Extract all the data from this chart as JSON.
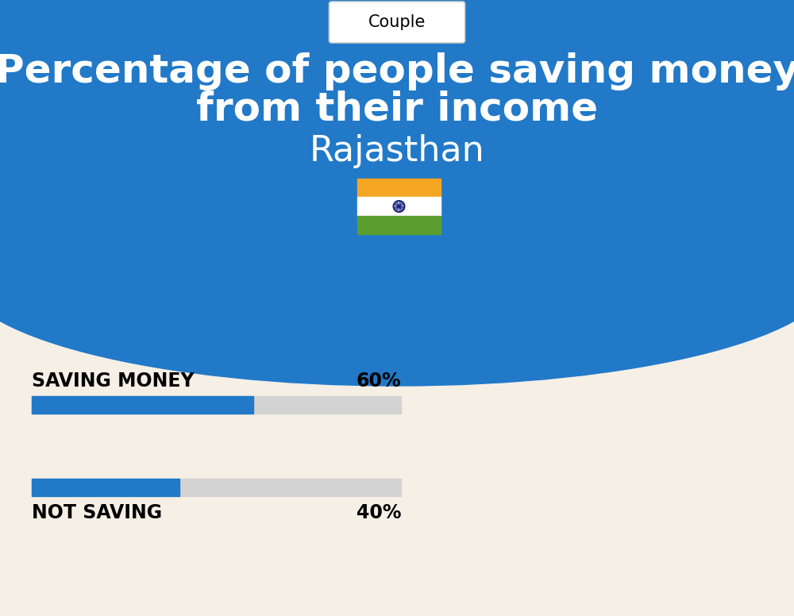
{
  "title_line1": "Percentage of people saving money",
  "title_line2": "from their income",
  "subtitle": "Rajasthan",
  "tab_label": "Couple",
  "bg_top_color": "#2179C8",
  "bg_bottom_color": "#F5EFE6",
  "bar1_label": "SAVING MONEY",
  "bar1_value": 60,
  "bar1_pct": "60%",
  "bar2_label": "NOT SAVING",
  "bar2_value": 40,
  "bar2_pct": "40%",
  "bar_fill_color": "#2179C8",
  "bar_bg_color": "#D3D3D3",
  "label_color": "#000000",
  "title_color": "#FFFFFF",
  "subtitle_color": "#FFFFFF",
  "flag_orange": "#F5A623",
  "flag_white": "#FFFFFF",
  "flag_green": "#5A9E2F",
  "flag_chakra": "#1A237E",
  "couple_tab_border": "#CCCCCC"
}
